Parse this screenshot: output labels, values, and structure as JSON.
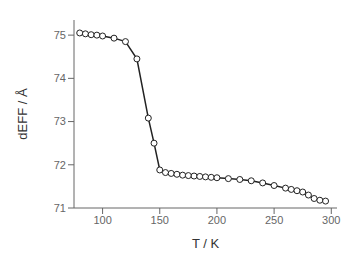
{
  "chart_data": {
    "type": "line",
    "xlabel": "T / K",
    "ylabel": "dEFF / Å",
    "x": [
      80,
      85,
      90,
      95,
      100,
      110,
      120,
      130,
      140,
      145,
      150,
      155,
      160,
      165,
      170,
      175,
      180,
      185,
      190,
      195,
      200,
      210,
      220,
      230,
      240,
      250,
      260,
      265,
      270,
      275,
      280,
      285,
      290,
      295
    ],
    "values": [
      75.05,
      75.03,
      75.01,
      75.0,
      74.98,
      74.93,
      74.85,
      74.45,
      73.08,
      72.5,
      71.88,
      71.82,
      71.8,
      71.78,
      71.76,
      71.75,
      71.74,
      71.73,
      71.72,
      71.71,
      71.7,
      71.68,
      71.66,
      71.63,
      71.58,
      71.52,
      71.46,
      71.43,
      71.4,
      71.37,
      71.3,
      71.22,
      71.18,
      71.16
    ],
    "xlim": [
      75,
      305
    ],
    "ylim": [
      71,
      75.35
    ],
    "xticks": [
      100,
      150,
      200,
      250,
      300
    ],
    "yticks": [
      71,
      72,
      73,
      74,
      75
    ],
    "color": "#222222",
    "marker": "circle",
    "grid": false
  }
}
